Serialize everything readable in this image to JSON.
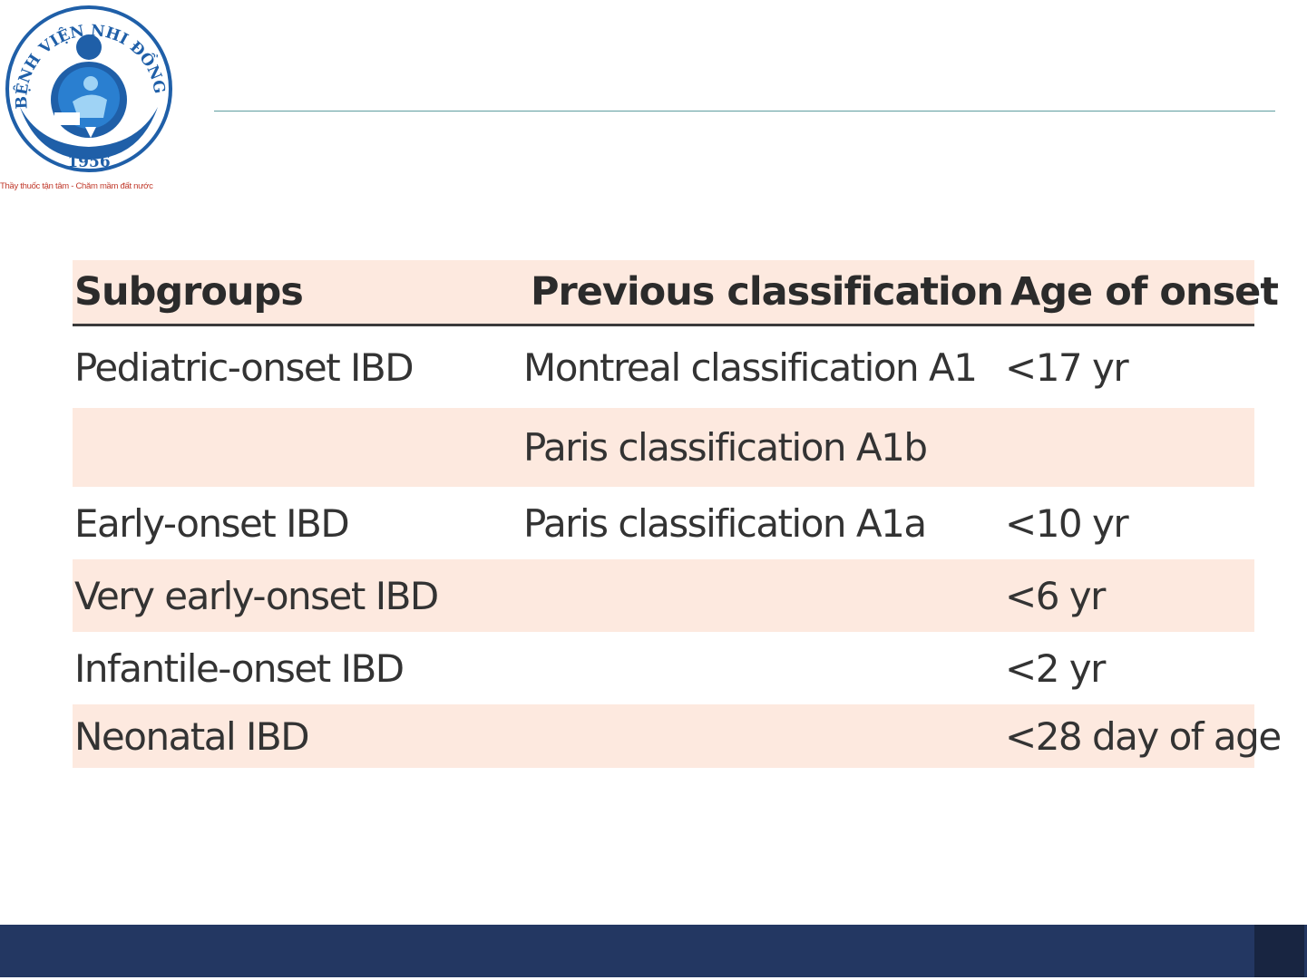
{
  "logo": {
    "ring_text": "BỆNH VIỆN NHI ĐỒNG I",
    "year": "1956",
    "tagline": "Thầy thuốc tận tâm - Chăm mầm đất nước",
    "colors": {
      "ring": "#1f5fa8",
      "figure": "#2a7fd0",
      "tagline": "#c0392b"
    }
  },
  "table": {
    "headers": [
      "Subgroups",
      "Previous classification",
      "Age of onset"
    ],
    "rows": [
      {
        "subgroup": "Pediatric-onset IBD",
        "classification": "Montreal classification A1",
        "age": "<17 yr"
      },
      {
        "subgroup": "",
        "classification": "Paris classification A1b",
        "age": ""
      },
      {
        "subgroup": "Early-onset IBD",
        "classification": "Paris classification A1a",
        "age": "<10 yr"
      },
      {
        "subgroup": "Very early-onset IBD",
        "classification": "",
        "age": "<6 yr"
      },
      {
        "subgroup": "Infantile-onset IBD",
        "classification": "",
        "age": "<2 yr"
      },
      {
        "subgroup": "Neonatal IBD",
        "classification": "",
        "age": "<28 day of age"
      }
    ],
    "colors": {
      "header_bg": "#fde9df",
      "stripe_bg": "#fde9df",
      "text": "#333333"
    }
  },
  "footer": {
    "bar_color": "#233762",
    "block_color": "#182541"
  }
}
